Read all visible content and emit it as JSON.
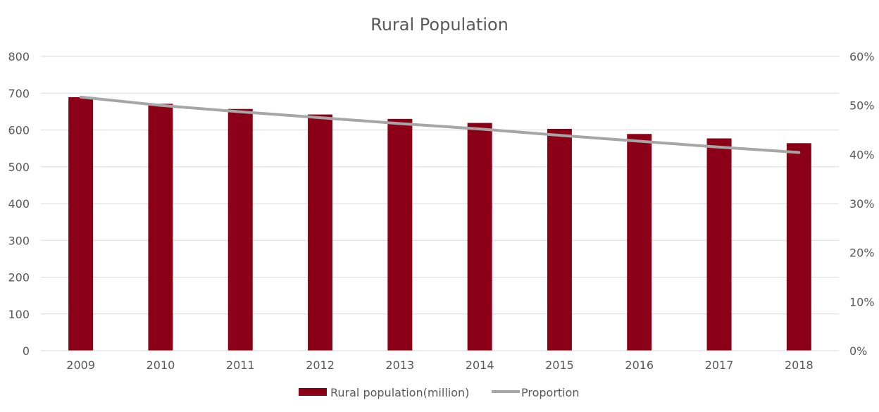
{
  "chart_data": {
    "type": "bar",
    "title": "Rural Population",
    "categories": [
      "2009",
      "2010",
      "2011",
      "2012",
      "2013",
      "2014",
      "2015",
      "2016",
      "2017",
      "2018"
    ],
    "series": [
      {
        "name": "Rural population(million)",
        "type": "bar",
        "axis": "left",
        "color": "#8b0016",
        "values": [
          689,
          671,
          657,
          642,
          630,
          619,
          603,
          589,
          577,
          564
        ]
      },
      {
        "name": "Proportion",
        "type": "line",
        "axis": "right",
        "color": "#a6a6a6",
        "values": [
          0.517,
          0.5,
          0.487,
          0.475,
          0.463,
          0.452,
          0.439,
          0.427,
          0.415,
          0.404
        ]
      }
    ],
    "y_left": {
      "min": 0,
      "max": 800,
      "ticks": [
        "0",
        "100",
        "200",
        "300",
        "400",
        "500",
        "600",
        "700",
        "800"
      ]
    },
    "y_right": {
      "min": 0,
      "max": 0.6,
      "ticks": [
        "0%",
        "10%",
        "20%",
        "30%",
        "40%",
        "50%",
        "60%"
      ]
    },
    "grid": true,
    "legend_position": "bottom"
  }
}
